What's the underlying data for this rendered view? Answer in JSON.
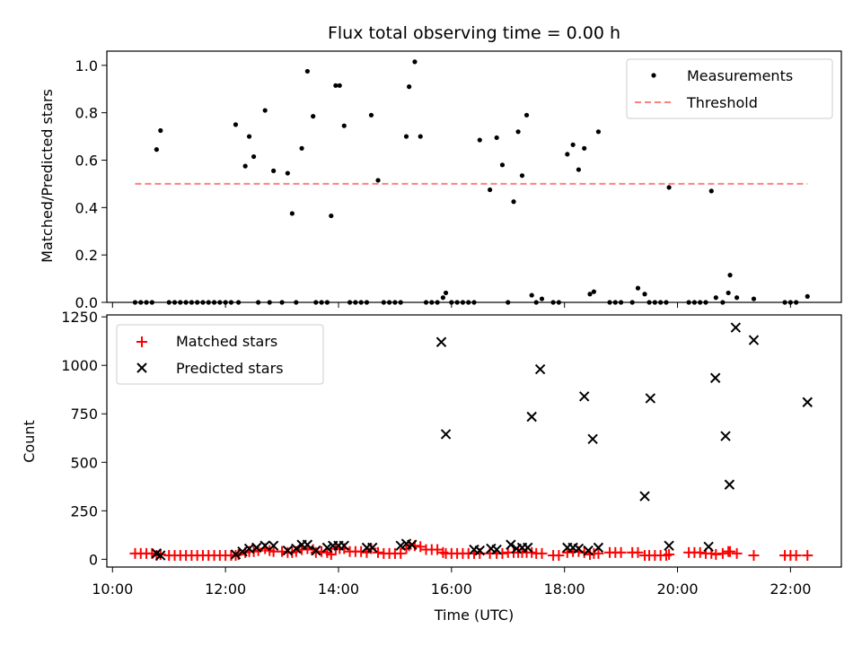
{
  "colors": {
    "measurement": "#000000",
    "threshold": "#ff7f7f",
    "matched": "#ff0000",
    "predicted": "#000000"
  },
  "chart_data": [
    {
      "type": "scatter",
      "title": "Flux total observing time = 0.00 h",
      "xlabel": "",
      "ylabel": "Matched/Predicted stars",
      "xlim": [
        9.9,
        22.9
      ],
      "ylim": [
        0,
        1.06
      ],
      "xticks": [
        10,
        12,
        14,
        16,
        18,
        20,
        22
      ],
      "yticks": [
        0.0,
        0.2,
        0.4,
        0.6,
        0.8,
        1.0
      ],
      "ytick_labels": [
        "0.0",
        "0.2",
        "0.4",
        "0.6",
        "0.8",
        "1.0"
      ],
      "legend_position": "upper right",
      "legend": [
        "Measurements",
        "Threshold"
      ],
      "threshold": {
        "name": "Threshold",
        "x": [
          10.4,
          22.3
        ],
        "y": 0.5
      },
      "series": [
        {
          "name": "Measurements",
          "x": [
            10.4,
            10.5,
            10.6,
            10.7,
            10.78,
            10.85,
            11.0,
            11.1,
            11.2,
            11.3,
            11.4,
            11.5,
            11.6,
            11.7,
            11.8,
            11.9,
            12.0,
            12.1,
            12.18,
            12.23,
            12.35,
            12.42,
            12.5,
            12.58,
            12.7,
            12.78,
            12.85,
            13.0,
            13.1,
            13.18,
            13.25,
            13.35,
            13.45,
            13.55,
            13.6,
            13.7,
            13.8,
            13.87,
            13.95,
            14.02,
            14.1,
            14.2,
            14.3,
            14.4,
            14.5,
            14.58,
            14.7,
            14.8,
            14.9,
            15.0,
            15.1,
            15.2,
            15.25,
            15.35,
            15.45,
            15.55,
            15.65,
            15.75,
            15.85,
            15.9,
            16.0,
            16.1,
            16.2,
            16.3,
            16.4,
            16.5,
            16.68,
            16.8,
            16.9,
            17.0,
            17.1,
            17.18,
            17.25,
            17.33,
            17.42,
            17.5,
            17.6,
            17.8,
            17.9,
            18.05,
            18.15,
            18.25,
            18.35,
            18.45,
            18.52,
            18.6,
            18.8,
            18.9,
            19.0,
            19.2,
            19.3,
            19.42,
            19.5,
            19.6,
            19.7,
            19.8,
            19.85,
            20.2,
            20.3,
            20.4,
            20.5,
            20.6,
            20.68,
            20.8,
            20.9,
            20.93,
            21.05,
            21.35,
            21.9,
            22.0,
            22.1,
            22.3
          ],
          "y": [
            0,
            0,
            0,
            0,
            0.645,
            0.725,
            0,
            0,
            0,
            0,
            0,
            0,
            0,
            0,
            0,
            0,
            0,
            0,
            0.75,
            0,
            0.575,
            0.7,
            0.615,
            0,
            0.81,
            0,
            0.555,
            0,
            0.545,
            0.375,
            0,
            0.65,
            0.975,
            0.785,
            0,
            0,
            0,
            0.365,
            0.915,
            0.915,
            0.745,
            0,
            0,
            0,
            0,
            0.79,
            0.515,
            0,
            0,
            0,
            0,
            0.7,
            0.91,
            1.015,
            0.7,
            0,
            0,
            0,
            0.02,
            0.04,
            0,
            0,
            0,
            0,
            0,
            0.685,
            0.475,
            0.695,
            0.58,
            0,
            0.425,
            0.72,
            0.535,
            0.79,
            0.03,
            0,
            0.015,
            0,
            0,
            0.625,
            0.665,
            0.56,
            0.65,
            0.035,
            0.045,
            0.72,
            0,
            0,
            0,
            0,
            0.06,
            0.035,
            0,
            0,
            0,
            0,
            0.485,
            0,
            0,
            0,
            0,
            0.47,
            0.02,
            0,
            0.04,
            0.115,
            0.02,
            0.015,
            0,
            0,
            0,
            0.025
          ]
        }
      ]
    },
    {
      "type": "scatter",
      "title": "",
      "xlabel": "Time (UTC)",
      "ylabel": "Count",
      "xlim": [
        9.9,
        22.9
      ],
      "ylim": [
        -40,
        1260
      ],
      "xticks": [
        10,
        12,
        14,
        16,
        18,
        20,
        22
      ],
      "xtick_labels": [
        "10:00",
        "12:00",
        "14:00",
        "16:00",
        "18:00",
        "20:00",
        "22:00"
      ],
      "yticks": [
        0,
        250,
        500,
        750,
        1000,
        1250
      ],
      "ytick_labels": [
        "0",
        "250",
        "500",
        "750",
        "1000",
        "1250"
      ],
      "legend_position": "upper left",
      "legend": [
        "Matched stars",
        "Predicted stars"
      ],
      "series": [
        {
          "name": "Matched stars",
          "marker": "+",
          "x": [
            10.4,
            10.5,
            10.6,
            10.7,
            10.78,
            10.85,
            11.0,
            11.1,
            11.2,
            11.3,
            11.4,
            11.5,
            11.6,
            11.7,
            11.8,
            11.9,
            12.0,
            12.1,
            12.18,
            12.23,
            12.35,
            12.42,
            12.5,
            12.58,
            12.7,
            12.78,
            12.85,
            13.0,
            13.1,
            13.18,
            13.25,
            13.35,
            13.45,
            13.55,
            13.6,
            13.7,
            13.8,
            13.87,
            13.95,
            14.02,
            14.1,
            14.2,
            14.3,
            14.4,
            14.5,
            14.58,
            14.7,
            14.8,
            14.9,
            15.0,
            15.1,
            15.2,
            15.25,
            15.35,
            15.45,
            15.55,
            15.65,
            15.75,
            15.85,
            15.9,
            16.0,
            16.1,
            16.2,
            16.3,
            16.4,
            16.5,
            16.68,
            16.8,
            16.9,
            17.0,
            17.1,
            17.18,
            17.25,
            17.33,
            17.42,
            17.5,
            17.6,
            17.8,
            17.9,
            18.05,
            18.15,
            18.25,
            18.35,
            18.45,
            18.52,
            18.6,
            18.8,
            18.9,
            19.0,
            19.2,
            19.3,
            19.42,
            19.5,
            19.6,
            19.7,
            19.8,
            19.85,
            20.2,
            20.3,
            20.4,
            20.5,
            20.6,
            20.68,
            20.8,
            20.9,
            20.93,
            21.05,
            21.35,
            21.9,
            22.0,
            22.1,
            22.3
          ],
          "y": [
            30,
            30,
            30,
            30,
            20,
            25,
            20,
            20,
            20,
            20,
            20,
            20,
            20,
            20,
            20,
            20,
            20,
            20,
            20,
            25,
            35,
            40,
            40,
            45,
            55,
            45,
            40,
            40,
            35,
            35,
            40,
            50,
            55,
            50,
            35,
            40,
            35,
            25,
            55,
            55,
            55,
            40,
            40,
            40,
            35,
            55,
            35,
            30,
            30,
            30,
            30,
            55,
            70,
            70,
            65,
            50,
            50,
            50,
            35,
            30,
            30,
            30,
            30,
            30,
            30,
            30,
            30,
            30,
            30,
            35,
            35,
            35,
            35,
            35,
            35,
            30,
            30,
            20,
            20,
            35,
            40,
            40,
            35,
            25,
            30,
            30,
            35,
            35,
            35,
            35,
            35,
            20,
            20,
            20,
            20,
            20,
            25,
            35,
            35,
            35,
            30,
            30,
            25,
            30,
            40,
            40,
            30,
            20,
            20,
            20,
            20,
            20
          ]
        },
        {
          "name": "Predicted stars",
          "marker": "x",
          "x": [
            10.78,
            10.85,
            12.18,
            12.3,
            12.42,
            12.55,
            12.7,
            12.85,
            13.1,
            13.25,
            13.35,
            13.45,
            13.6,
            13.8,
            13.9,
            14.0,
            14.1,
            14.5,
            14.6,
            15.1,
            15.2,
            15.3,
            15.82,
            15.9,
            16.4,
            16.5,
            16.7,
            16.8,
            17.05,
            17.15,
            17.25,
            17.35,
            17.42,
            17.57,
            18.05,
            18.15,
            18.25,
            18.35,
            18.42,
            18.5,
            18.6,
            19.42,
            19.52,
            19.85,
            20.55,
            20.67,
            20.85,
            20.92,
            21.03,
            21.35,
            22.3
          ],
          "y": [
            30,
            20,
            25,
            40,
            55,
            60,
            70,
            70,
            45,
            55,
            75,
            75,
            45,
            60,
            70,
            70,
            70,
            60,
            60,
            70,
            80,
            75,
            1120,
            645,
            50,
            45,
            55,
            50,
            75,
            55,
            60,
            60,
            735,
            980,
            60,
            60,
            55,
            840,
            45,
            620,
            60,
            325,
            830,
            70,
            65,
            935,
            635,
            385,
            1195,
            1130,
            810
          ]
        }
      ]
    }
  ]
}
